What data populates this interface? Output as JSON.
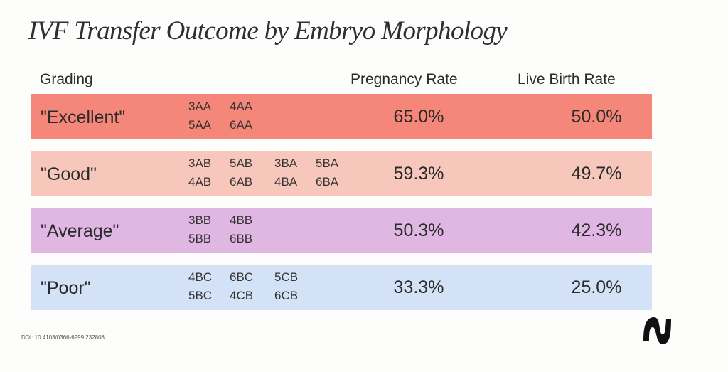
{
  "title": "IVF Transfer Outcome by Embryo Morphology",
  "headers": {
    "grading": "Grading",
    "pregnancy": "Pregnancy Rate",
    "live_birth": "Live Birth Rate"
  },
  "rows": [
    {
      "label": "\"Excellent\"",
      "codes": [
        "3AA",
        "4AA",
        "",
        "",
        "5AA",
        "6AA",
        "",
        ""
      ],
      "pregnancy": "65.0%",
      "live_birth": "50.0%",
      "color": "#f5877a"
    },
    {
      "label": "\"Good\"",
      "codes": [
        "3AB",
        "5AB",
        "3BA",
        "5BA",
        "4AB",
        "6AB",
        "4BA",
        "6BA"
      ],
      "pregnancy": "59.3%",
      "live_birth": "49.7%",
      "color": "#f8c7bb"
    },
    {
      "label": "\"Average\"",
      "codes": [
        "3BB",
        "4BB",
        "",
        "",
        "5BB",
        "6BB",
        "",
        ""
      ],
      "pregnancy": "50.3%",
      "live_birth": "42.3%",
      "color": "#e0b6e3"
    },
    {
      "label": "\"Poor\"",
      "codes": [
        "4BC",
        "6BC",
        "5CB",
        "",
        "5BC",
        "4CB",
        "6CB",
        ""
      ],
      "pregnancy": "33.3%",
      "live_birth": "25.0%",
      "color": "#d3e2f7"
    }
  ],
  "chart_data": {
    "type": "table",
    "title": "IVF Transfer Outcome by Embryo Morphology",
    "columns": [
      "Grading",
      "Pregnancy Rate",
      "Live Birth Rate"
    ],
    "categories": [
      "\"Excellent\"",
      "\"Good\"",
      "\"Average\"",
      "\"Poor\""
    ],
    "series": [
      {
        "name": "Pregnancy Rate",
        "values": [
          65.0,
          59.3,
          50.3,
          33.3
        ]
      },
      {
        "name": "Live Birth Rate",
        "values": [
          50.0,
          49.7,
          42.3,
          25.0
        ]
      }
    ]
  },
  "footer": {
    "doi": "DOI: 10.4103/0366-6999.232808",
    "logo_icon": "brand-n-logo-icon"
  }
}
